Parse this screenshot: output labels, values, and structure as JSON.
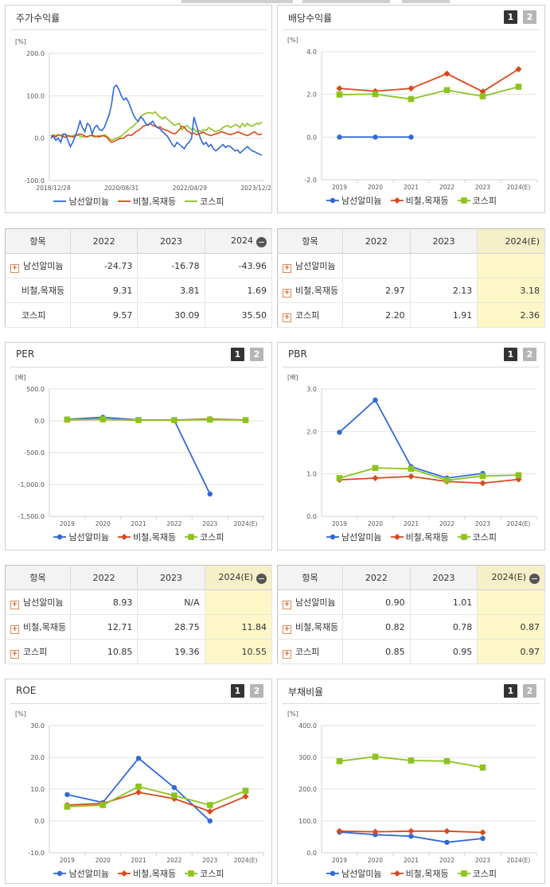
{
  "colors": {
    "series1": "#3068d8",
    "series2": "#d9481c",
    "series3": "#8dc31e"
  },
  "legend_labels": [
    "남선알미늄",
    "비철,목재등",
    "코스피"
  ],
  "buttons": [
    "1",
    "2"
  ],
  "panels": [
    {
      "title": "주가수익률",
      "unit": "[%]",
      "has_buttons": false
    },
    {
      "title": "배당수익률",
      "unit": "[%]",
      "has_buttons": true
    },
    {
      "title": "PER",
      "unit": "[배]",
      "has_buttons": true
    },
    {
      "title": "PBR",
      "unit": "[배]",
      "has_buttons": true
    },
    {
      "title": "ROE",
      "unit": "[%]",
      "has_buttons": true
    },
    {
      "title": "부채비율",
      "unit": "[%]",
      "has_buttons": true
    }
  ],
  "chart_data": [
    {
      "type": "line",
      "title": "주가수익률",
      "ylabel": "[%]",
      "ylim": [
        -100,
        200
      ],
      "yticks": [
        "200.0",
        "100.0",
        "0.0",
        "-100.0"
      ],
      "xticks": [
        "2018/12/28",
        "2020/08/31",
        "2022/04/29",
        "2023/12/28"
      ],
      "series": [
        {
          "name": "남선알미늄",
          "values": [
            0,
            5,
            -5,
            0,
            -10,
            8,
            10,
            -5,
            -20,
            -10,
            5,
            20,
            40,
            25,
            15,
            35,
            30,
            10,
            25,
            30,
            20,
            18,
            25,
            40,
            55,
            80,
            120,
            125,
            115,
            100,
            90,
            95,
            85,
            70,
            55,
            45,
            40,
            50,
            45,
            35,
            30,
            35,
            40,
            30,
            25,
            22,
            15,
            10,
            5,
            -5,
            -15,
            -20,
            -10,
            -15,
            -20,
            -25,
            -15,
            -10,
            0,
            50,
            30,
            10,
            -5,
            -15,
            -10,
            -20,
            -15,
            -25,
            -30,
            -25,
            -20,
            -15,
            -22,
            -18,
            -20,
            -25,
            -30,
            -28,
            -35,
            -30,
            -25,
            -20,
            -25,
            -30,
            -32,
            -35,
            -38,
            -40
          ]
        },
        {
          "name": "비철,목재등",
          "values": [
            5,
            6,
            3,
            8,
            6,
            4,
            2,
            6,
            5,
            3,
            4,
            8,
            10,
            8,
            5,
            3,
            6,
            7,
            5,
            4,
            3,
            6,
            5,
            3,
            -5,
            -10,
            -8,
            -5,
            -2,
            0,
            0,
            5,
            8,
            6,
            10,
            15,
            18,
            22,
            28,
            30,
            32,
            35,
            30,
            28,
            25,
            27,
            22,
            20,
            18,
            15,
            12,
            10,
            14,
            20,
            28,
            26,
            18,
            15,
            10,
            12,
            8,
            10,
            12,
            14,
            10,
            8,
            6,
            8,
            10,
            12,
            15,
            14,
            12,
            10,
            8,
            10,
            12,
            15,
            13,
            10,
            8,
            6,
            9,
            12,
            15,
            10,
            8,
            10
          ]
        },
        {
          "name": "코스피",
          "values": [
            5,
            8,
            6,
            8,
            6,
            10,
            8,
            5,
            3,
            6,
            7,
            8,
            5,
            3,
            4,
            3,
            6,
            5,
            3,
            5,
            6,
            4,
            8,
            5,
            0,
            -5,
            -3,
            0,
            2,
            5,
            10,
            15,
            20,
            25,
            28,
            35,
            40,
            50,
            55,
            58,
            60,
            60,
            58,
            62,
            55,
            50,
            45,
            50,
            45,
            40,
            35,
            30,
            33,
            35,
            20,
            25,
            30,
            25,
            20,
            22,
            15,
            18,
            15,
            20,
            18,
            25,
            22,
            18,
            15,
            18,
            20,
            25,
            28,
            30,
            25,
            28,
            32,
            30,
            25,
            35,
            28,
            35,
            30,
            28,
            32,
            35,
            33,
            38
          ]
        }
      ]
    },
    {
      "type": "line",
      "title": "배당수익률",
      "ylabel": "[%]",
      "ylim": [
        -2,
        4
      ],
      "yticks": [
        "4.0",
        "2.0",
        "0.0",
        "-2.0"
      ],
      "categories": [
        "2019",
        "2020",
        "2021",
        "2022",
        "2023",
        "2024(E)"
      ],
      "series": [
        {
          "name": "남선알미늄",
          "values": [
            0.0,
            0.0,
            0.0,
            null,
            null,
            null
          ]
        },
        {
          "name": "비철,목재등",
          "values": [
            2.28,
            2.15,
            2.28,
            2.97,
            2.13,
            3.18
          ]
        },
        {
          "name": "코스피",
          "values": [
            1.99,
            2.01,
            1.78,
            2.2,
            1.91,
            2.36
          ]
        }
      ]
    },
    {
      "type": "line",
      "title": "PER",
      "ylabel": "[배]",
      "ylim": [
        -1500,
        500
      ],
      "yticks": [
        "500.0",
        "0.0",
        "-500.0",
        "-1,000.0",
        "-1,500.0"
      ],
      "categories": [
        "2019",
        "2020",
        "2021",
        "2022",
        "2023",
        "2024(E)"
      ],
      "series": [
        {
          "name": "남선알미늄",
          "values": [
            25,
            55,
            15,
            8.93,
            -1150,
            null
          ]
        },
        {
          "name": "비철,목재등",
          "values": [
            18,
            22,
            12,
            12.71,
            28.75,
            11.84
          ]
        },
        {
          "name": "코스피",
          "values": [
            20,
            25,
            12,
            10.85,
            19.36,
            10.55
          ]
        }
      ]
    },
    {
      "type": "line",
      "title": "PBR",
      "ylabel": "[배]",
      "ylim": [
        0,
        3
      ],
      "yticks": [
        "3.0",
        "2.0",
        "1.0",
        "0.0"
      ],
      "categories": [
        "2019",
        "2020",
        "2021",
        "2022",
        "2023",
        "2024(E)"
      ],
      "series": [
        {
          "name": "남선알미늄",
          "values": [
            1.98,
            2.74,
            1.17,
            0.9,
            1.01,
            null
          ]
        },
        {
          "name": "비철,목재등",
          "values": [
            0.86,
            0.9,
            0.94,
            0.82,
            0.78,
            0.87
          ]
        },
        {
          "name": "코스피",
          "values": [
            0.9,
            1.14,
            1.12,
            0.85,
            0.95,
            0.97
          ]
        }
      ]
    },
    {
      "type": "line",
      "title": "ROE",
      "ylabel": "[%]",
      "ylim": [
        -10,
        30
      ],
      "yticks": [
        "30.0",
        "20.0",
        "10.0",
        "0.0",
        "-10.0"
      ],
      "categories": [
        "2019",
        "2020",
        "2021",
        "2022",
        "2023",
        "2024(E)"
      ],
      "series": [
        {
          "name": "남선알미늄",
          "values": [
            8.3,
            5.8,
            19.7,
            10.5,
            0.0,
            null
          ]
        },
        {
          "name": "비철,목재등",
          "values": [
            5.0,
            5.5,
            9.0,
            7.0,
            3.0,
            7.7
          ]
        },
        {
          "name": "코스피",
          "values": [
            4.5,
            5.0,
            10.8,
            8.0,
            5.0,
            9.5
          ]
        }
      ]
    },
    {
      "type": "line",
      "title": "부채비율",
      "ylabel": "[%]",
      "ylim": [
        0,
        400
      ],
      "yticks": [
        "400.0",
        "300.0",
        "200.0",
        "100.0",
        "0.0"
      ],
      "categories": [
        "2019",
        "2020",
        "2021",
        "2022",
        "2023",
        "2024(E)"
      ],
      "series": [
        {
          "name": "남선알미늄",
          "values": [
            65,
            57,
            52,
            33,
            45,
            null
          ]
        },
        {
          "name": "비철,목재등",
          "values": [
            68,
            66,
            68,
            68,
            64,
            null
          ]
        },
        {
          "name": "코스피",
          "values": [
            288,
            302,
            290,
            288,
            268,
            null
          ]
        }
      ]
    }
  ],
  "tables": [
    {
      "header": [
        "항목",
        "2022",
        "2023",
        "2024"
      ],
      "minus_on_last": true,
      "est_col": false,
      "rows": [
        {
          "label": "남선알미늄",
          "plus": true,
          "cells": [
            "-24.73",
            "-16.78",
            "-43.96"
          ]
        },
        {
          "label": "비철,목재등",
          "plus": false,
          "cells": [
            "9.31",
            "3.81",
            "1.69"
          ]
        },
        {
          "label": "코스피",
          "plus": false,
          "cells": [
            "9.57",
            "30.09",
            "35.50"
          ]
        }
      ]
    },
    {
      "header": [
        "항목",
        "2022",
        "2023",
        "2024(E)"
      ],
      "minus_on_last": false,
      "est_col": true,
      "rows": [
        {
          "label": "남선알미늄",
          "plus": true,
          "cells": [
            "",
            "",
            ""
          ]
        },
        {
          "label": "비철,목재등",
          "plus": true,
          "cells": [
            "2.97",
            "2.13",
            "3.18"
          ]
        },
        {
          "label": "코스피",
          "plus": true,
          "cells": [
            "2.20",
            "1.91",
            "2.36"
          ]
        }
      ]
    },
    {
      "header": [
        "항목",
        "2022",
        "2023",
        "2024(E)"
      ],
      "minus_on_last": true,
      "est_col": true,
      "rows": [
        {
          "label": "남선알미늄",
          "plus": true,
          "cells": [
            "8.93",
            "N/A",
            ""
          ]
        },
        {
          "label": "비철,목재등",
          "plus": true,
          "cells": [
            "12.71",
            "28.75",
            "11.84"
          ]
        },
        {
          "label": "코스피",
          "plus": true,
          "cells": [
            "10.85",
            "19.36",
            "10.55"
          ]
        }
      ]
    },
    {
      "header": [
        "항목",
        "2022",
        "2023",
        "2024(E)"
      ],
      "minus_on_last": true,
      "est_col": true,
      "rows": [
        {
          "label": "남선알미늄",
          "plus": true,
          "cells": [
            "0.90",
            "1.01",
            ""
          ]
        },
        {
          "label": "비철,목재등",
          "plus": true,
          "cells": [
            "0.82",
            "0.78",
            "0.87"
          ]
        },
        {
          "label": "코스피",
          "plus": true,
          "cells": [
            "0.85",
            "0.95",
            "0.97"
          ]
        }
      ]
    }
  ]
}
